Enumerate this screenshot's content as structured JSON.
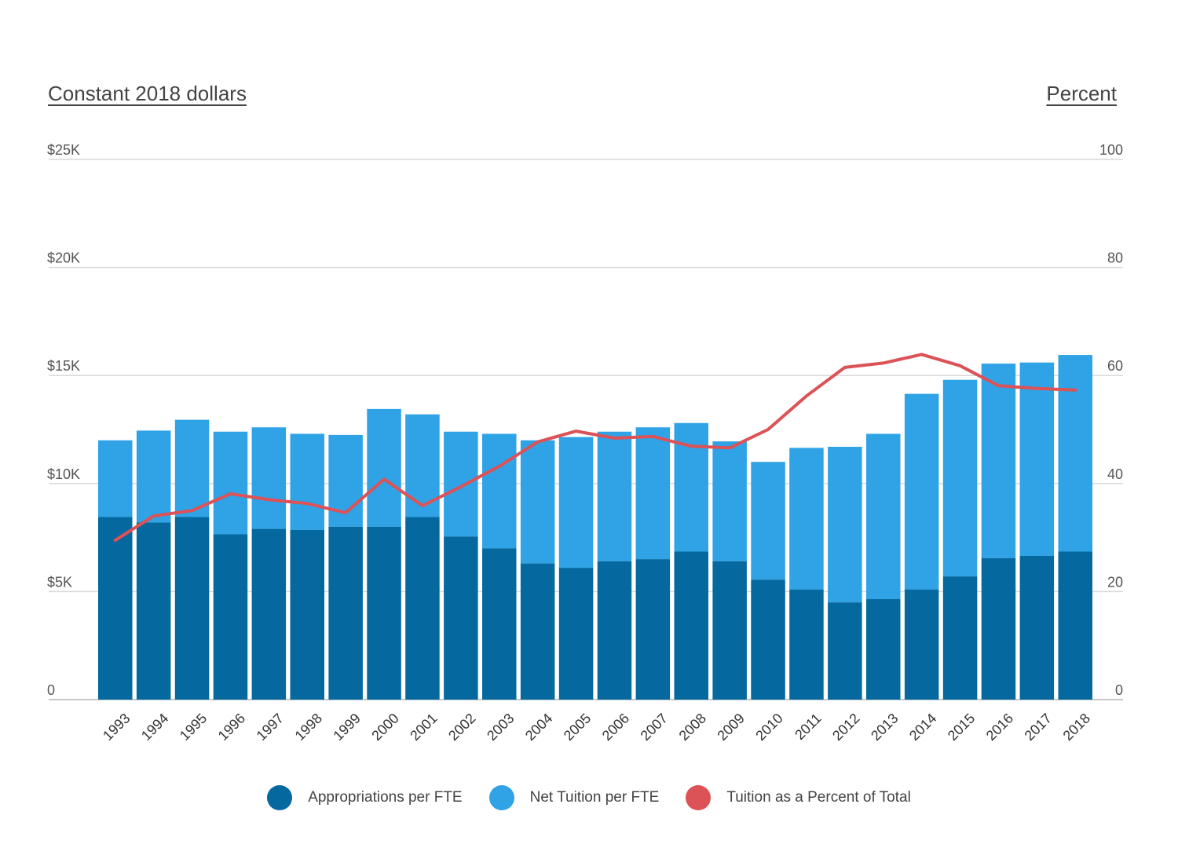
{
  "chart_data": {
    "type": "bar",
    "stacked": true,
    "left_axis_title": "Constant 2018 dollars",
    "right_axis_title": "Percent",
    "categories": [
      "1993",
      "1994",
      "1995",
      "1996",
      "1997",
      "1998",
      "1999",
      "2000",
      "2001",
      "2002",
      "2003",
      "2004",
      "2005",
      "2006",
      "2007",
      "2008",
      "2009",
      "2010",
      "2011",
      "2012",
      "2013",
      "2014",
      "2015",
      "2016",
      "2017",
      "2018"
    ],
    "series": [
      {
        "name": "Appropriations per FTE",
        "axis": "left",
        "color": "#05689e",
        "values": [
          8450,
          8200,
          8450,
          7650,
          7900,
          7850,
          8000,
          8000,
          8450,
          7550,
          7000,
          6300,
          6100,
          6400,
          6500,
          6850,
          6400,
          5550,
          5100,
          4500,
          4650,
          5100,
          5700,
          6550,
          6650,
          6850
        ]
      },
      {
        "name": "Net Tuition per FTE",
        "axis": "left",
        "color": "#2fa3e6",
        "values": [
          3550,
          4250,
          4500,
          4750,
          4700,
          4450,
          4250,
          5450,
          4750,
          4850,
          5300,
          5700,
          6050,
          6000,
          6100,
          5950,
          5550,
          5450,
          6550,
          7200,
          7650,
          9050,
          9100,
          9000,
          8950,
          9100
        ]
      },
      {
        "name": "Tuition as a Percent of Total",
        "axis": "right",
        "type": "line",
        "color": "#dc5257",
        "values": [
          29.5,
          34.0,
          35.0,
          38.1,
          37.0,
          36.3,
          34.6,
          40.8,
          35.9,
          39.4,
          43.2,
          47.7,
          49.7,
          48.4,
          48.7,
          46.9,
          46.6,
          50.0,
          56.2,
          61.5,
          62.3,
          63.9,
          61.8,
          58.1,
          57.6,
          57.3
        ]
      }
    ],
    "y_left": {
      "ticks": [
        "0",
        "$5K",
        "$10K",
        "$15K",
        "$20K",
        "$25K"
      ],
      "min": 0,
      "max": 25000
    },
    "y_right": {
      "ticks": [
        "0",
        "20",
        "40",
        "60",
        "80",
        "100"
      ],
      "min": 0,
      "max": 100
    },
    "grid": true,
    "legend_position": "bottom"
  }
}
